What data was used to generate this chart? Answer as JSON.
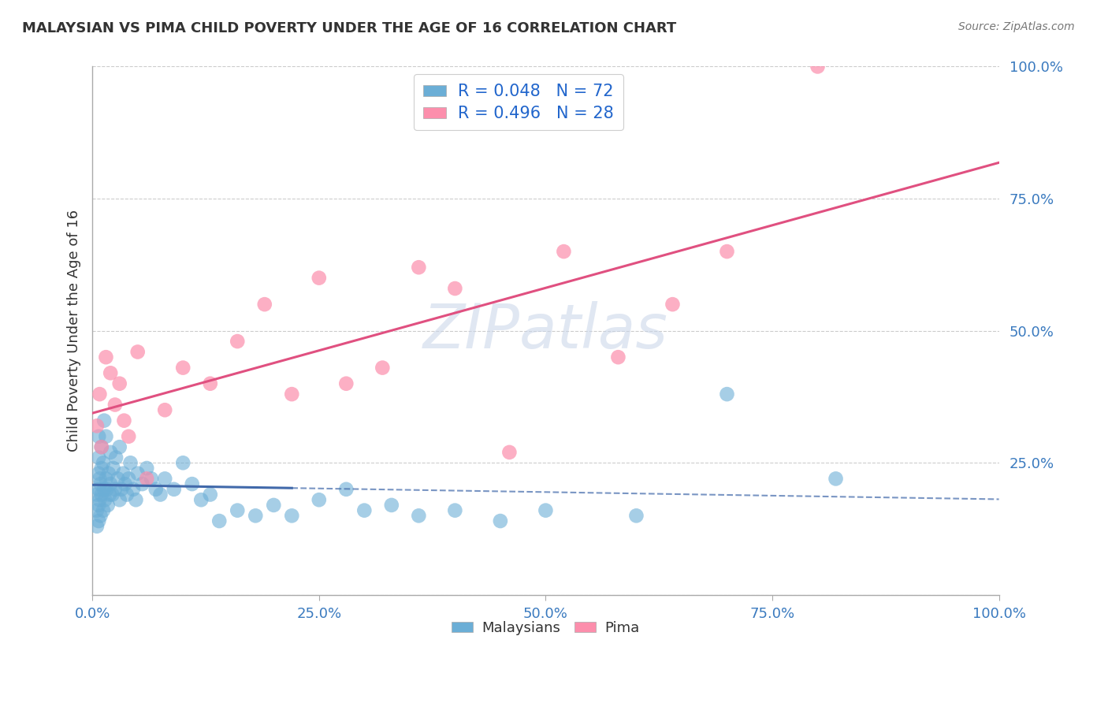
{
  "title": "MALAYSIAN VS PIMA CHILD POVERTY UNDER THE AGE OF 16 CORRELATION CHART",
  "source": "Source: ZipAtlas.com",
  "ylabel": "Child Poverty Under the Age of 16",
  "xlim": [
    0,
    1
  ],
  "ylim": [
    0,
    1
  ],
  "xticks": [
    0,
    0.25,
    0.5,
    0.75,
    1.0
  ],
  "yticks": [
    0.0,
    0.25,
    0.5,
    0.75,
    1.0
  ],
  "xtick_labels": [
    "0.0%",
    "25.0%",
    "50.0%",
    "75.0%",
    "100.0%"
  ],
  "ytick_labels": [
    "",
    "25.0%",
    "50.0%",
    "75.0%",
    "100.0%"
  ],
  "background_color": "#ffffff",
  "legend_r1": "R = 0.048",
  "legend_n1": "N = 72",
  "legend_r2": "R = 0.496",
  "legend_n2": "N = 28",
  "malaysian_color": "#6baed6",
  "pima_color": "#fc8eac",
  "trend_blue": "#4169aa",
  "trend_pink": "#e05080",
  "malaysians_x": [
    0.005,
    0.005,
    0.005,
    0.007,
    0.007,
    0.007,
    0.007,
    0.007,
    0.007,
    0.008,
    0.008,
    0.009,
    0.009,
    0.01,
    0.01,
    0.01,
    0.012,
    0.012,
    0.013,
    0.013,
    0.014,
    0.015,
    0.015,
    0.016,
    0.017,
    0.018,
    0.019,
    0.02,
    0.02,
    0.022,
    0.023,
    0.025,
    0.026,
    0.028,
    0.03,
    0.03,
    0.032,
    0.034,
    0.036,
    0.038,
    0.04,
    0.042,
    0.045,
    0.048,
    0.05,
    0.055,
    0.06,
    0.065,
    0.07,
    0.075,
    0.08,
    0.09,
    0.1,
    0.11,
    0.12,
    0.13,
    0.14,
    0.16,
    0.18,
    0.2,
    0.22,
    0.25,
    0.28,
    0.3,
    0.33,
    0.36,
    0.4,
    0.45,
    0.5,
    0.6,
    0.7,
    0.82
  ],
  "malaysians_y": [
    0.13,
    0.16,
    0.19,
    0.14,
    0.17,
    0.2,
    0.23,
    0.26,
    0.3,
    0.18,
    0.22,
    0.15,
    0.21,
    0.19,
    0.24,
    0.28,
    0.16,
    0.25,
    0.2,
    0.33,
    0.18,
    0.22,
    0.3,
    0.2,
    0.17,
    0.23,
    0.19,
    0.21,
    0.27,
    0.19,
    0.24,
    0.2,
    0.26,
    0.22,
    0.18,
    0.28,
    0.2,
    0.23,
    0.21,
    0.19,
    0.22,
    0.25,
    0.2,
    0.18,
    0.23,
    0.21,
    0.24,
    0.22,
    0.2,
    0.19,
    0.22,
    0.2,
    0.25,
    0.21,
    0.18,
    0.19,
    0.14,
    0.16,
    0.15,
    0.17,
    0.15,
    0.18,
    0.2,
    0.16,
    0.17,
    0.15,
    0.16,
    0.14,
    0.16,
    0.15,
    0.38,
    0.22
  ],
  "pima_x": [
    0.005,
    0.008,
    0.01,
    0.015,
    0.02,
    0.025,
    0.03,
    0.035,
    0.04,
    0.05,
    0.06,
    0.08,
    0.1,
    0.13,
    0.16,
    0.19,
    0.22,
    0.25,
    0.28,
    0.32,
    0.36,
    0.4,
    0.46,
    0.52,
    0.58,
    0.64,
    0.7,
    0.8
  ],
  "pima_y": [
    0.32,
    0.38,
    0.28,
    0.45,
    0.42,
    0.36,
    0.4,
    0.33,
    0.3,
    0.46,
    0.22,
    0.35,
    0.43,
    0.4,
    0.48,
    0.55,
    0.38,
    0.6,
    0.4,
    0.43,
    0.62,
    0.58,
    0.27,
    0.65,
    0.45,
    0.55,
    0.65,
    1.0
  ]
}
